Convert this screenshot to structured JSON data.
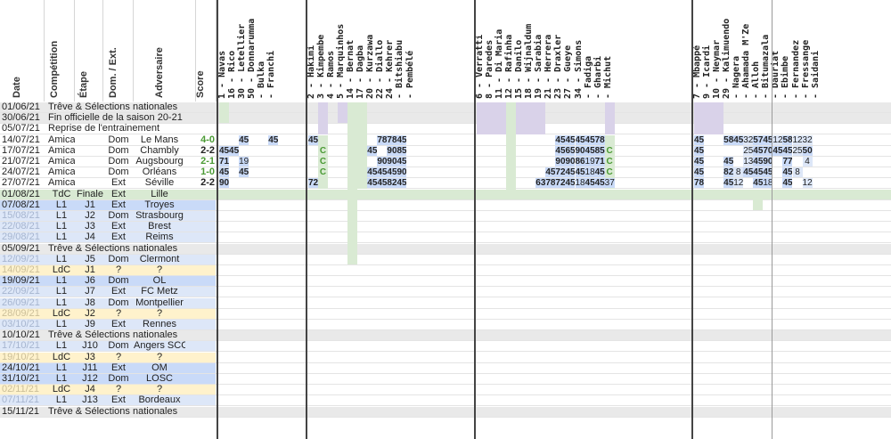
{
  "headers": {
    "date": "Date",
    "competition": "Compétition",
    "etape": "Étape",
    "dom_ext": "Dom. / Ext.",
    "adversaire": "Adversaire",
    "score": "Score"
  },
  "players": [
    "1 - Navas",
    "16 - Rico",
    "30 - Letellier",
    "50 - Donnarumma",
    "- Bulka",
    "- Franchi",
    "2 - Hakimi",
    "3 - Kimpembe",
    "4 - Ramos",
    "5 - Marquinhos",
    "14 - Bernat",
    "17 - Dagba",
    "20 - Kurzawa",
    "22 - Diallo",
    "24 - Kehrer",
    "- Bitshiabu",
    "- Pembélé",
    "6 - Verratti",
    "8 - Paredes",
    "11 - Di Maria",
    "12 - Rafinha",
    "15 - Danilo",
    "18 - Wijnaldum",
    "19 - Sarabia",
    "21 - Herrera",
    "23 - Draxler",
    "27 - Gueye",
    "34 - Simons",
    "- Fadiga",
    "- Gharbi",
    "- Michut",
    "7 - Mbappé",
    "9 - Icardi",
    "10 - Neymar",
    "29 - Kalimuendo",
    "- Nagera",
    "- Ahamada M'Ze",
    "- Alloh",
    "- Bitumazala",
    "- Dauriat",
    "- Ebimbe",
    "- Fernandez",
    "- Fressange",
    "- Saidani"
  ],
  "rows": [
    {
      "date": "01/06/21",
      "type": "treve",
      "text": "Trêve & Sélections nationales"
    },
    {
      "date": "30/06/21",
      "type": "treve",
      "text": "Fin officielle de la saison 20-21"
    },
    {
      "date": "05/07/21",
      "type": "plain",
      "text": "Reprise de l'entrainement"
    },
    {
      "date": "14/07/21",
      "type": "amical",
      "comp": "Amical",
      "etape": "",
      "dom": "Dom",
      "adv": "Le Mans",
      "score": "4-0"
    },
    {
      "date": "17/07/21",
      "type": "amical",
      "comp": "Amical",
      "etape": "",
      "dom": "Dom",
      "adv": "Chambly",
      "score": "2-2"
    },
    {
      "date": "21/07/21",
      "type": "amical",
      "comp": "Amical",
      "etape": "",
      "dom": "Dom",
      "adv": "Augsbourg",
      "score": "2-1"
    },
    {
      "date": "24/07/21",
      "type": "amical",
      "comp": "Amical",
      "etape": "",
      "dom": "Dom",
      "adv": "Orléans",
      "score": "1-0"
    },
    {
      "date": "27/07/21",
      "type": "amical",
      "comp": "Amical",
      "etape": "",
      "dom": "Ext",
      "adv": "Séville",
      "score": "2-2"
    },
    {
      "date": "01/08/21",
      "type": "finale",
      "comp": "TdC",
      "etape": "Finale",
      "dom": "Ext",
      "adv": "Lille",
      "score": ""
    },
    {
      "date": "07/08/21",
      "type": "l1-played",
      "comp": "L1",
      "etape": "J1",
      "dom": "Ext",
      "adv": "Troyes",
      "score": ""
    },
    {
      "date": "15/08/21",
      "type": "l1-future",
      "comp": "L1",
      "etape": "J2",
      "dom": "Dom",
      "adv": "Strasbourg",
      "score": ""
    },
    {
      "date": "22/08/21",
      "type": "l1-future",
      "comp": "L1",
      "etape": "J3",
      "dom": "Ext",
      "adv": "Brest",
      "score": ""
    },
    {
      "date": "29/08/21",
      "type": "l1-future",
      "comp": "L1",
      "etape": "J4",
      "dom": "Ext",
      "adv": "Reims",
      "score": ""
    },
    {
      "date": "05/09/21",
      "type": "treve",
      "text": "Trêve & Sélections nationales"
    },
    {
      "date": "12/09/21",
      "type": "l1-future",
      "comp": "L1",
      "etape": "J5",
      "dom": "Dom",
      "adv": "Clermont",
      "score": ""
    },
    {
      "date": "14/09/21",
      "type": "ldc",
      "comp": "LdC",
      "etape": "J1",
      "dom": "?",
      "adv": "?",
      "score": ""
    },
    {
      "date": "19/09/21",
      "type": "l1-played",
      "comp": "L1",
      "etape": "J6",
      "dom": "Dom",
      "adv": "OL",
      "score": ""
    },
    {
      "date": "22/09/21",
      "type": "l1-future",
      "comp": "L1",
      "etape": "J7",
      "dom": "Ext",
      "adv": "FC Metz",
      "score": ""
    },
    {
      "date": "26/09/21",
      "type": "l1-future",
      "comp": "L1",
      "etape": "J8",
      "dom": "Dom",
      "adv": "Montpellier",
      "score": ""
    },
    {
      "date": "28/09/21",
      "type": "ldc",
      "comp": "LdC",
      "etape": "J2",
      "dom": "?",
      "adv": "?",
      "score": ""
    },
    {
      "date": "03/10/21",
      "type": "l1-future",
      "comp": "L1",
      "etape": "J9",
      "dom": "Ext",
      "adv": "Rennes",
      "score": ""
    },
    {
      "date": "10/10/21",
      "type": "treve",
      "text": "Trêve & Sélections nationales"
    },
    {
      "date": "17/10/21",
      "type": "l1-future",
      "comp": "L1",
      "etape": "J10",
      "dom": "Dom",
      "adv": "Angers SCO",
      "score": ""
    },
    {
      "date": "19/10/21",
      "type": "ldc",
      "comp": "LdC",
      "etape": "J3",
      "dom": "?",
      "adv": "?",
      "score": ""
    },
    {
      "date": "24/10/21",
      "type": "l1-played",
      "comp": "L1",
      "etape": "J11",
      "dom": "Ext",
      "adv": "OM",
      "score": ""
    },
    {
      "date": "31/10/21",
      "type": "l1-played",
      "comp": "L1",
      "etape": "J12",
      "dom": "Dom",
      "adv": "LOSC",
      "score": ""
    },
    {
      "date": "02/11/21",
      "type": "ldc",
      "comp": "LdC",
      "etape": "J4",
      "dom": "?",
      "adv": "?",
      "score": ""
    },
    {
      "date": "07/11/21",
      "type": "l1-future",
      "comp": "L1",
      "etape": "J13",
      "dom": "Ext",
      "adv": "Bordeaux",
      "score": ""
    },
    {
      "date": "15/11/21",
      "type": "treve",
      "text": "Trêve & Sélections nationales"
    }
  ],
  "minutes": {
    "3": {
      "2": "45",
      "5": "45",
      "6": "45",
      "13": "78",
      "14": "78",
      "15": "45",
      "25": "45",
      "26": "45",
      "27": "45",
      "28": "45",
      "29": "78",
      "31": "45",
      "34": "58",
      "35": "45",
      "36": "32",
      "37": "57",
      "38": "45",
      "39": "12",
      "40": "58",
      "41": "12",
      "42": "32"
    },
    "4": {
      "0": "45",
      "1": "45",
      "7": "C",
      "12": "45",
      "14": "90",
      "15": "85",
      "25": "45",
      "26": "65",
      "27": "90",
      "28": "45",
      "29": "85",
      "30": "C",
      "31": "45",
      "36": "25",
      "37": "45",
      "38": "70",
      "39": "45",
      "40": "45",
      "41": "25",
      "42": "50"
    },
    "5": {
      "0": "71",
      "2": "19",
      "7": "C",
      "13": "90",
      "14": "90",
      "15": "45",
      "25": "90",
      "26": "90",
      "27": "86",
      "28": "19",
      "29": "71",
      "30": "C",
      "31": "45",
      "34": "45",
      "36": "13",
      "37": "45",
      "38": "90",
      "40": "77",
      "42": "4"
    },
    "6": {
      "0": "45",
      "2": "45",
      "7": "C",
      "12": "45",
      "13": "45",
      "14": "45",
      "15": "90",
      "24": "45",
      "25": "72",
      "26": "45",
      "27": "45",
      "28": "18",
      "29": "45",
      "30": "C",
      "31": "45",
      "34": "82",
      "35": "8",
      "36": "45",
      "37": "45",
      "38": "45",
      "40": "45",
      "41": "8"
    },
    "7": {
      "0": "90",
      "6": "72",
      "12": "45",
      "13": "45",
      "14": "82",
      "15": "45",
      "23": "63",
      "24": "78",
      "25": "72",
      "26": "45",
      "27": "18",
      "28": "45",
      "29": "45",
      "30": "37",
      "31": "78",
      "34": "45",
      "35": "12",
      "37": "45",
      "38": "18",
      "40": "45",
      "42": "12"
    }
  }
}
